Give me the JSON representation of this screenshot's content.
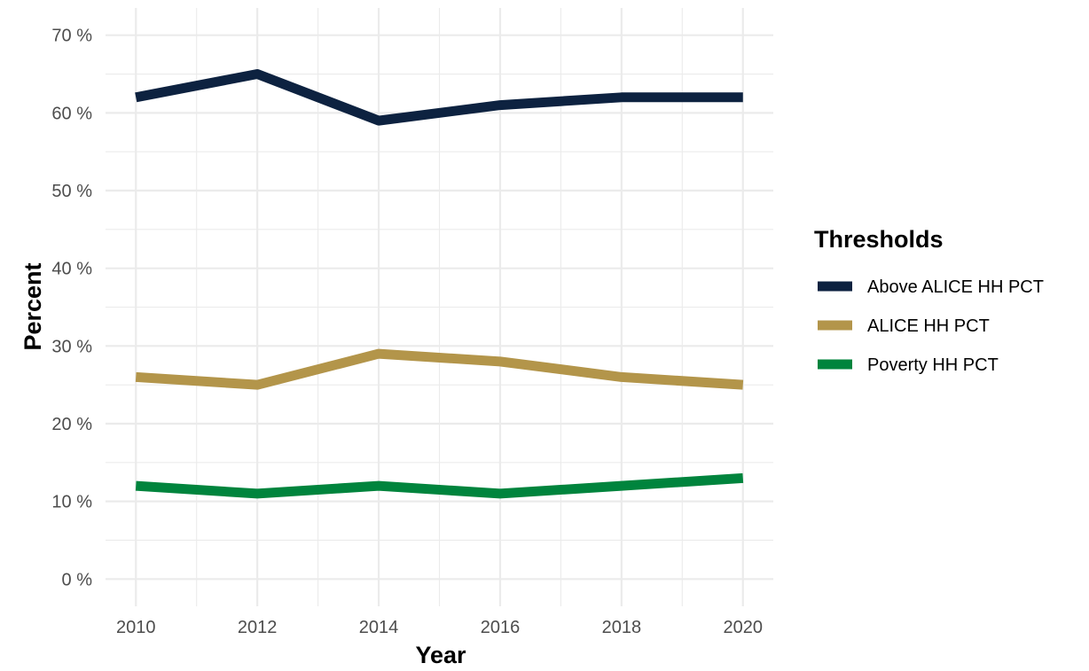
{
  "chart_data": {
    "type": "line",
    "title": "",
    "xlabel": "Year",
    "ylabel": "Percent",
    "x": [
      2010,
      2012,
      2014,
      2016,
      2018,
      2020
    ],
    "x_ticks": [
      "2010",
      "2012",
      "2014",
      "2016",
      "2018",
      "2020"
    ],
    "y_ticks": [
      {
        "value": 0,
        "label": "0 %"
      },
      {
        "value": 10,
        "label": "10 %"
      },
      {
        "value": 20,
        "label": "20 %"
      },
      {
        "value": 30,
        "label": "30 %"
      },
      {
        "value": 40,
        "label": "40 %"
      },
      {
        "value": 50,
        "label": "50 %"
      },
      {
        "value": 60,
        "label": "60 %"
      },
      {
        "value": 70,
        "label": "70 %"
      }
    ],
    "xlim": [
      2009.5,
      2020.5
    ],
    "ylim": [
      -3.5,
      73.5
    ],
    "grid": true,
    "legend": {
      "title": "Thresholds",
      "placement": "right"
    },
    "series": [
      {
        "name": "Above ALICE HH PCT",
        "color": "#0d2240",
        "values": [
          62,
          65,
          59,
          61,
          62,
          62
        ]
      },
      {
        "name": "ALICE HH PCT",
        "color": "#b3954a",
        "values": [
          26,
          25,
          29,
          28,
          26,
          25
        ]
      },
      {
        "name": "Poverty HH PCT",
        "color": "#00843d",
        "values": [
          12,
          11,
          12,
          11,
          12,
          13
        ]
      }
    ]
  }
}
